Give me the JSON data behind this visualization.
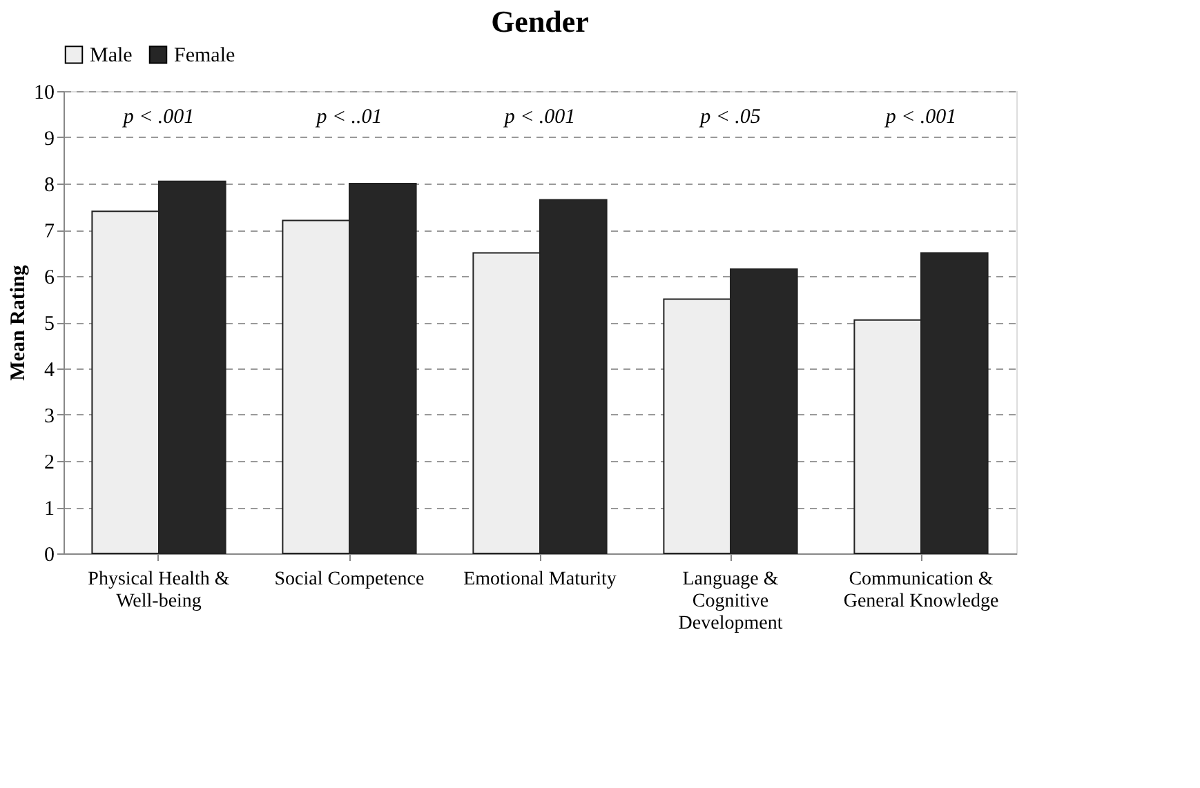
{
  "chart_data": {
    "type": "bar",
    "title": "Gender",
    "ylabel": "Mean Rating",
    "categories": [
      "Physical Health & Well-being",
      "Social Competence",
      "Emotional Maturity",
      "Language & Cognitive Development",
      "Communication & General Knowledge"
    ],
    "series": [
      {
        "name": "Male",
        "color": "#eeeeee",
        "values": [
          7.4,
          7.2,
          6.5,
          5.5,
          5.05
        ]
      },
      {
        "name": "Female",
        "color": "#262626",
        "values": [
          8.05,
          8.0,
          7.65,
          6.15,
          6.5
        ]
      }
    ],
    "ylim": [
      0,
      10
    ],
    "yticks": [
      0,
      1,
      2,
      3,
      4,
      5,
      6,
      7,
      8,
      9,
      10
    ],
    "grid": "y",
    "legend": "top",
    "annotations": [
      "p < .001",
      "p < ..01",
      "p < .001",
      "p < .05",
      "p < .001"
    ]
  }
}
